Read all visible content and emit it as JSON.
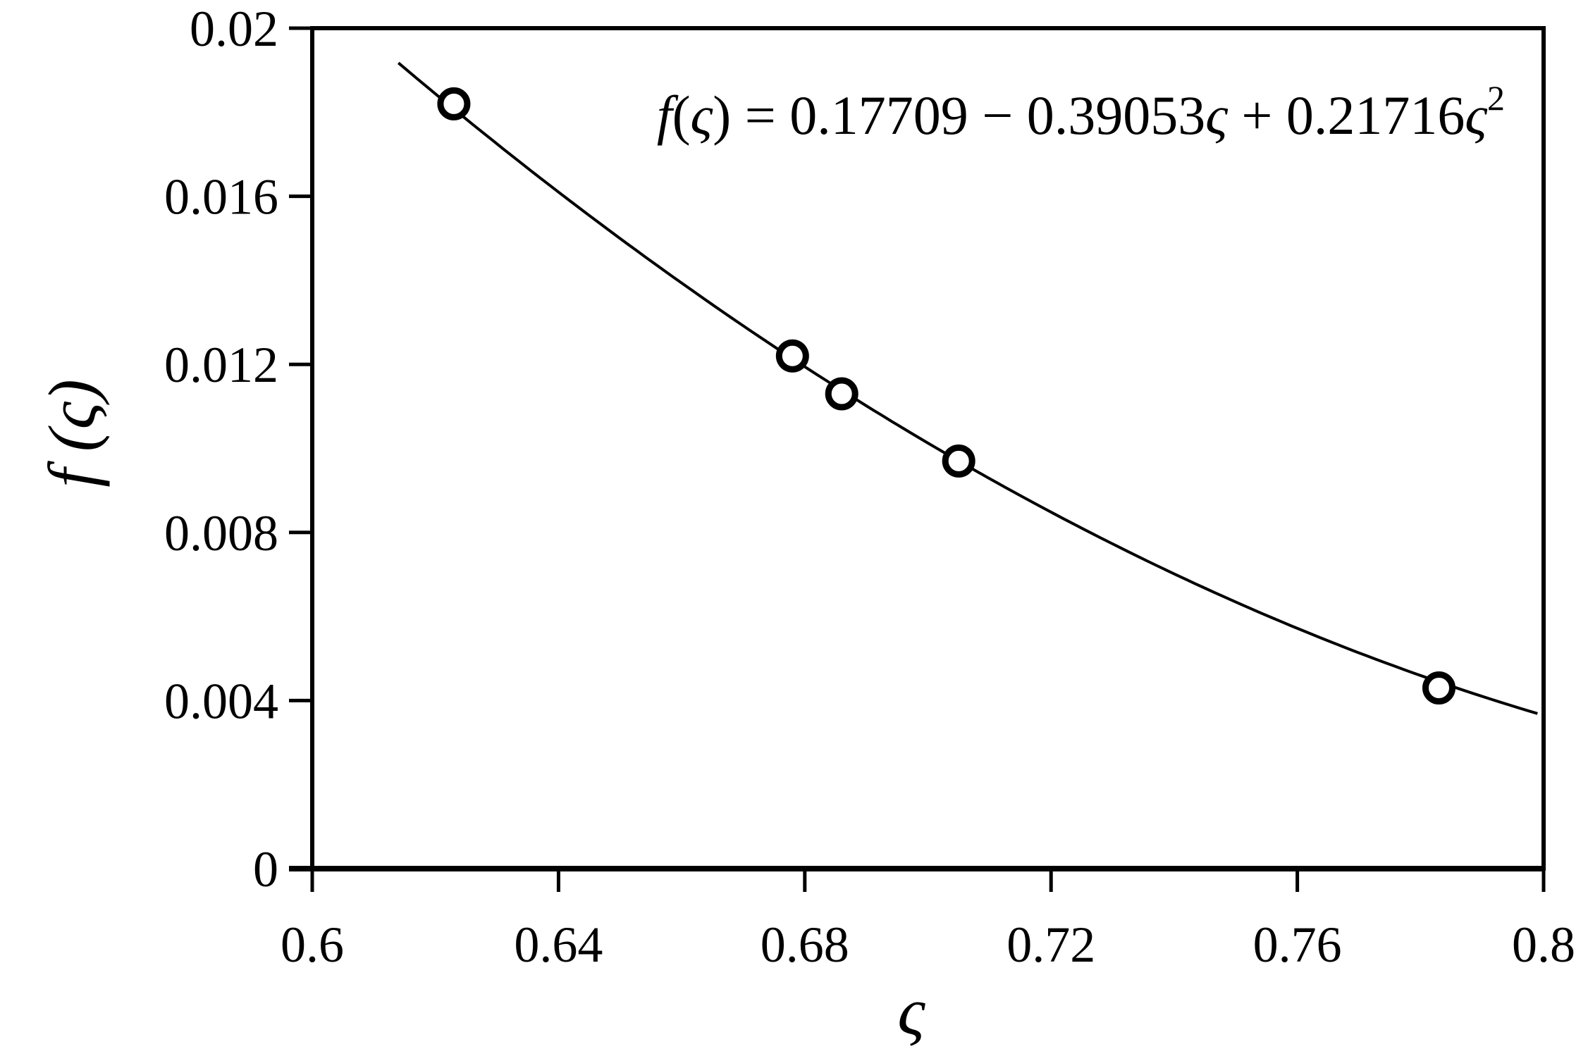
{
  "chart_data": {
    "type": "scatter",
    "title": "",
    "xlabel": "ς",
    "ylabel": "f (ς)",
    "xlim": [
      0.6,
      0.8
    ],
    "ylim": [
      0,
      0.02
    ],
    "x_ticks": [
      "0.6",
      "0.64",
      "0.68",
      "0.72",
      "0.76",
      "0.8"
    ],
    "y_ticks": [
      "0",
      "0.004",
      "0.008",
      "0.012",
      "0.016",
      "0.02"
    ],
    "grid": false,
    "legend": "none",
    "series": [
      {
        "type": "scatter",
        "marker": "open-circle",
        "x": [
          0.623,
          0.678,
          0.686,
          0.705,
          0.783
        ],
        "y": [
          0.0182,
          0.0122,
          0.0113,
          0.0097,
          0.0043
        ]
      },
      {
        "type": "line",
        "fit": "quadratic",
        "coefficients": [
          0.17709,
          -0.39053,
          0.21716
        ],
        "x_range": [
          0.614,
          0.799
        ]
      }
    ],
    "annotation": {
      "lhs_func": "f",
      "lhs_open": "(",
      "lhs_var": "ς",
      "lhs_close": ")",
      "eq": " = ",
      "term_const": "0.17709",
      "minus": " − ",
      "term_lin": "0.39053",
      "var1": "ς",
      "plus": " + ",
      "term_quad": "0.21716",
      "var2": "ς",
      "exp": "2"
    }
  }
}
